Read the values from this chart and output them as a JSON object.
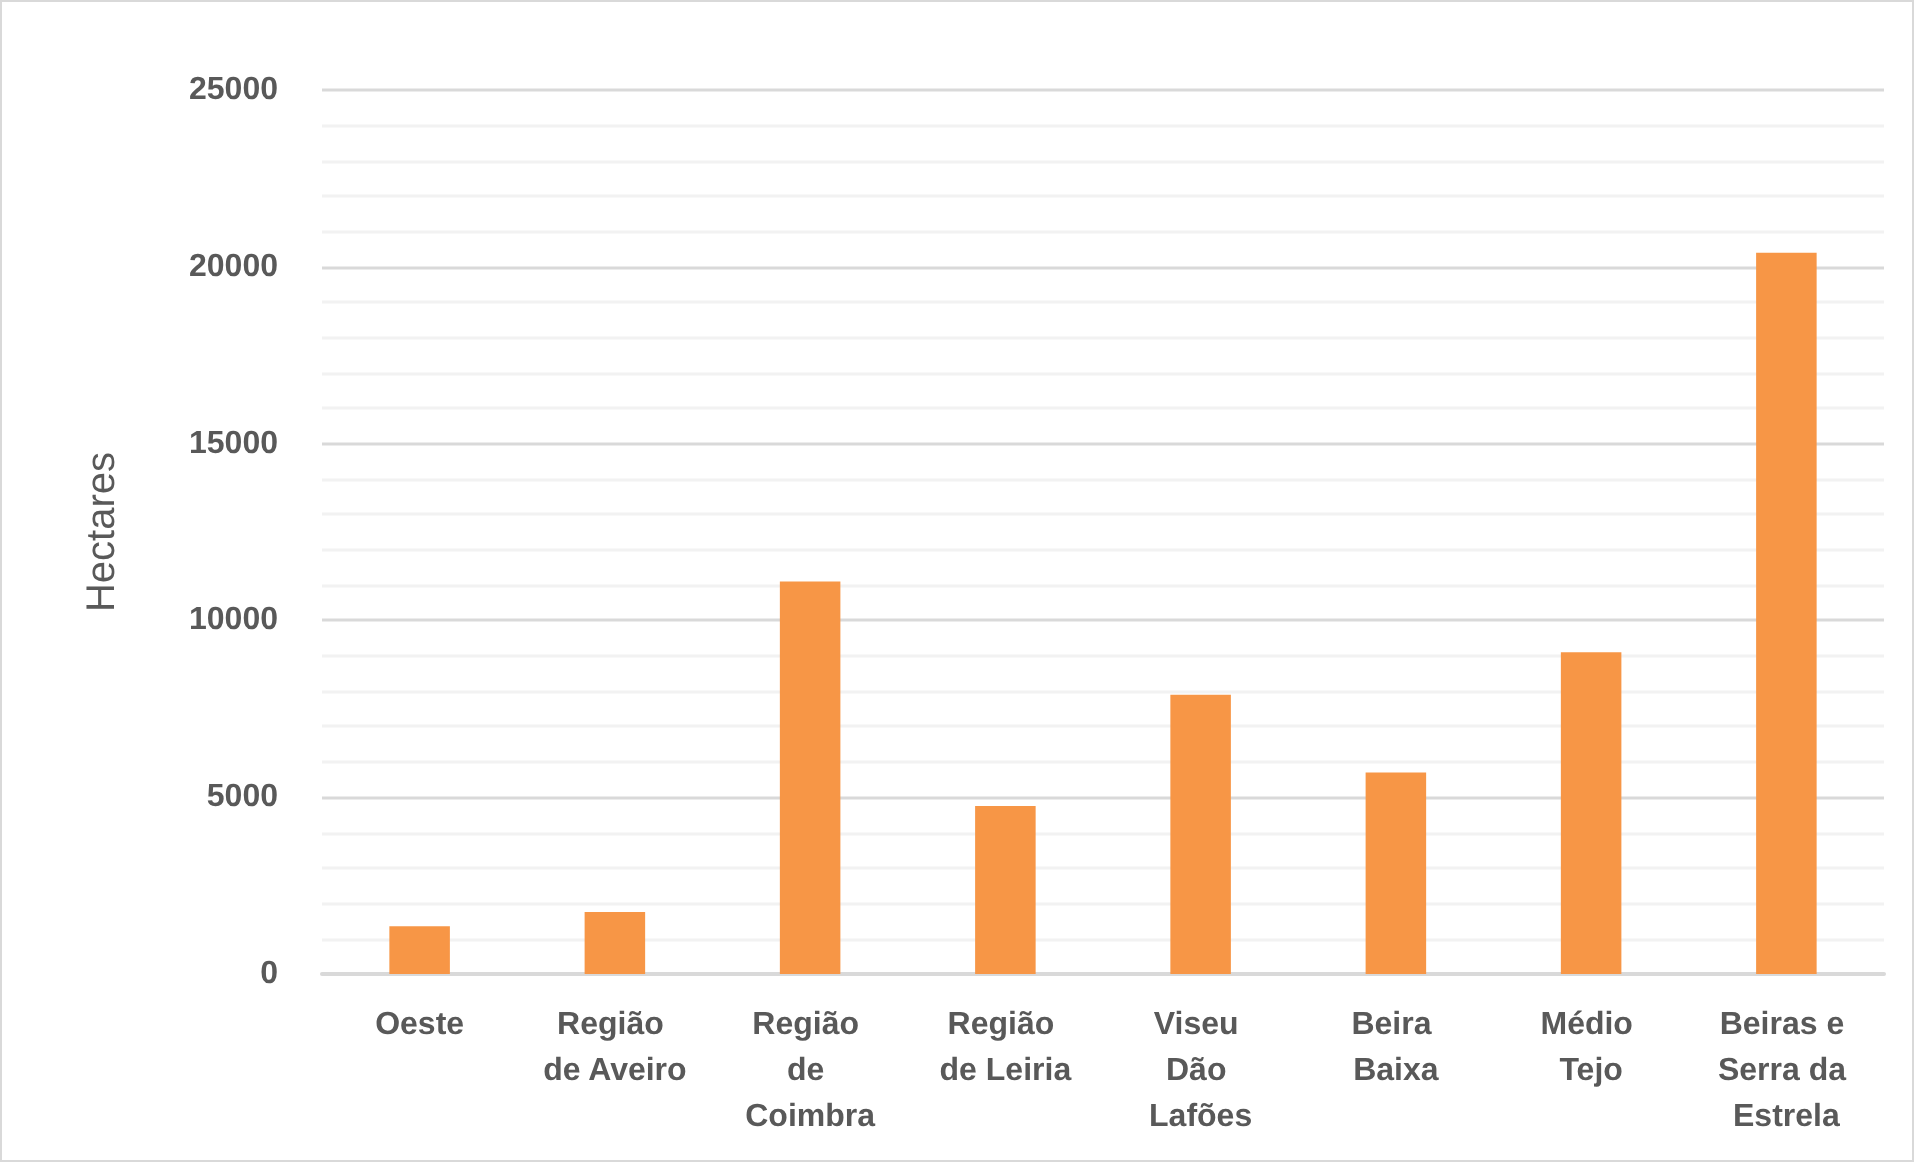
{
  "chart_data": {
    "type": "bar",
    "ylabel": "Hectares",
    "categories": [
      "Oeste",
      "Região de Aveiro",
      "Região de Coimbra",
      "Região de Leiria",
      "Viseu Dão Lafões",
      "Beira Baixa",
      "Médio Tejo",
      "Beiras e Serra da Estrela"
    ],
    "values": [
      1350,
      1750,
      11100,
      4750,
      7900,
      5700,
      9100,
      20400
    ],
    "color": "#f79646",
    "ylim": [
      0,
      25000
    ],
    "yticks": [
      0,
      5000,
      10000,
      15000,
      20000,
      25000
    ],
    "grid": "y"
  }
}
